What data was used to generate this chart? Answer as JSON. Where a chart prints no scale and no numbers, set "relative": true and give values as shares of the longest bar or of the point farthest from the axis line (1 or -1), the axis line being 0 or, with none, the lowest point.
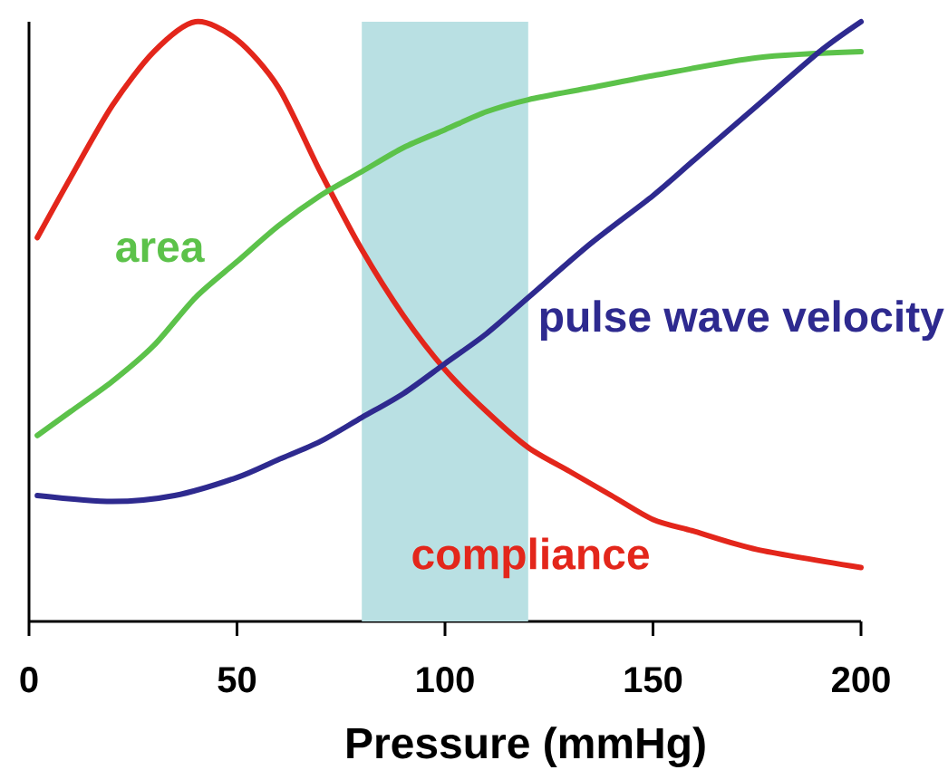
{
  "chart_data": {
    "type": "line",
    "xlabel": "Pressure (mmHg)",
    "relative": true,
    "xlim": [
      0,
      200
    ],
    "xticks": [
      0,
      50,
      100,
      150,
      200
    ],
    "tick_labels": "x",
    "line_style": "solid",
    "bands": [
      {
        "axis": "x",
        "from": 80,
        "to": 120,
        "color": "#b9e0e3"
      }
    ],
    "series": [
      {
        "name": "compliance",
        "color": "#e3261b",
        "x": [
          2,
          10,
          20,
          30,
          40,
          50,
          60,
          70,
          80,
          90,
          100,
          110,
          120,
          130,
          140,
          150,
          160,
          175,
          200
        ],
        "values": [
          0.64,
          0.74,
          0.86,
          0.95,
          1.0,
          0.97,
          0.89,
          0.75,
          0.62,
          0.51,
          0.42,
          0.35,
          0.29,
          0.25,
          0.21,
          0.17,
          0.15,
          0.12,
          0.09
        ]
      },
      {
        "name": "area",
        "color": "#5cc24a",
        "x": [
          2,
          10,
          20,
          30,
          40,
          50,
          60,
          70,
          80,
          90,
          100,
          110,
          120,
          135,
          150,
          175,
          200
        ],
        "values": [
          0.31,
          0.35,
          0.4,
          0.46,
          0.54,
          0.6,
          0.66,
          0.71,
          0.75,
          0.79,
          0.82,
          0.85,
          0.87,
          0.89,
          0.91,
          0.94,
          0.95
        ]
      },
      {
        "name": "pulse wave velocity",
        "color": "#2e2a8f",
        "x": [
          2,
          20,
          35,
          50,
          60,
          70,
          80,
          90,
          100,
          110,
          120,
          135,
          150,
          160,
          175,
          190,
          200
        ],
        "values": [
          0.21,
          0.2,
          0.21,
          0.24,
          0.27,
          0.3,
          0.34,
          0.38,
          0.43,
          0.48,
          0.54,
          0.63,
          0.71,
          0.77,
          0.86,
          0.95,
          1.0
        ]
      }
    ]
  }
}
